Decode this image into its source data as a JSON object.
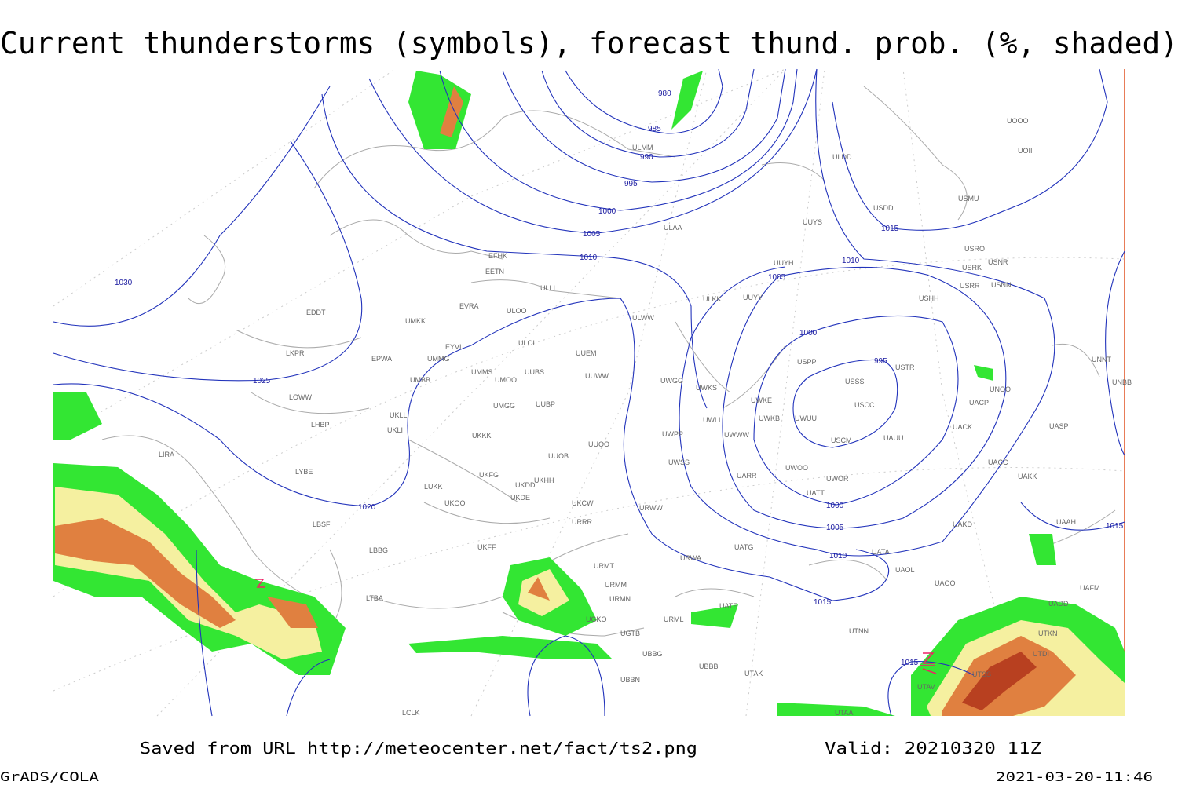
{
  "header": {
    "title": "Current thunderstorms (symbols), forecast thund. prob. (%, shaded)"
  },
  "footer": {
    "source": "Saved from URL http://meteocenter.net/fact/ts2.png",
    "valid": "Valid: 20210320 11Z",
    "producer": "GrADS/COLA",
    "timestamp": "2021-03-20-11:46"
  },
  "isobar_labels": [
    980,
    985,
    990,
    995,
    1000,
    1005,
    1010,
    1030,
    1025,
    1020,
    1015,
    1010,
    1005,
    1000,
    995,
    1000,
    1005,
    1010,
    1015,
    1015,
    1015
  ],
  "stations": [
    "EFHK",
    "EETN",
    "ULLI",
    "ULAA",
    "ULMM",
    "ULDD",
    "UUYS",
    "USDD",
    "USMU",
    "UOOO",
    "UOII",
    "USRO",
    "USRK",
    "USNR",
    "USRR",
    "USNN",
    "UUYH",
    "UUYY",
    "ULKK",
    "ULWW",
    "USHH",
    "USPP",
    "USTR",
    "USSS",
    "USCC",
    "UWKE",
    "UWKB",
    "UWUU",
    "USCM",
    "UAUU",
    "UACK",
    "UASP",
    "UACC",
    "UAKK",
    "UATT",
    "UWOO",
    "UWOR",
    "UARR",
    "UWSS",
    "UWPP",
    "UWWW",
    "UWLL",
    "UWKS",
    "UWGG",
    "UUEM",
    "UUWW",
    "UUBS",
    "UMMS",
    "UMOO",
    "UMBB",
    "UMMG",
    "UMKK",
    "EYVI",
    "EVRA",
    "ULOO",
    "ULOL",
    "EPWA",
    "EDDT",
    "LKPR",
    "LOWW",
    "LHBP",
    "UKLL",
    "UKLI",
    "UMGG",
    "UUBP",
    "UKKK",
    "UUOO",
    "UUOB",
    "UKHH",
    "UKDD",
    "UKDE",
    "UKFG",
    "LUKK",
    "UKOO",
    "UKCW",
    "URRR",
    "URWW",
    "LBSF",
    "LYBE",
    "LIRA",
    "LBBG",
    "UKFF",
    "URMT",
    "URWA",
    "URMM",
    "URMN",
    "UATG",
    "UATA",
    "UAOL",
    "UAOO",
    "UAKD",
    "UAAH",
    "UAFM",
    "UADD",
    "UTKN",
    "UTDI",
    "UTSS",
    "UTAV",
    "UTAA",
    "UTNN",
    "UTAK",
    "UBBB",
    "UBBG",
    "UGTB",
    "UGKO",
    "UBBN",
    "URML",
    "UATE",
    "LTBA",
    "LCLK",
    "UNNT",
    "UNBB",
    "UNOO",
    "UACP"
  ]
}
